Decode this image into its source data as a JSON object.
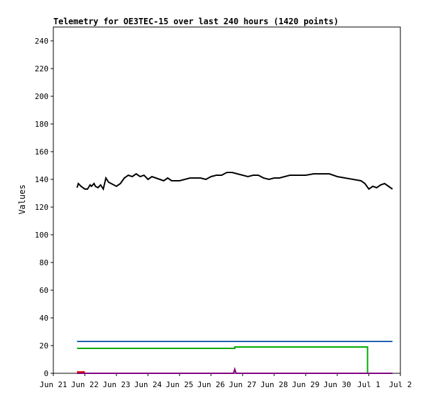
{
  "chart_data": {
    "type": "line",
    "title": "Telemetry for OE3TEC-15 over last 240 hours (1420 points)",
    "xlabel": "",
    "ylabel": "Values",
    "xlim": [
      "2021-06-21",
      "2021-07-02"
    ],
    "ylim": [
      0,
      250
    ],
    "x_ticks": [
      {
        "label": "Jun 21",
        "value": "2021-06-21"
      },
      {
        "label": "Jun 22",
        "value": "2021-06-22"
      },
      {
        "label": "Jun 23",
        "value": "2021-06-23"
      },
      {
        "label": "Jun 24",
        "value": "2021-06-24"
      },
      {
        "label": "Jun 25",
        "value": "2021-06-25"
      },
      {
        "label": "Jun 26",
        "value": "2021-06-26"
      },
      {
        "label": "Jun 27",
        "value": "2021-06-27"
      },
      {
        "label": "Jun 28",
        "value": "2021-06-28"
      },
      {
        "label": "Jun 29",
        "value": "2021-06-29"
      },
      {
        "label": "Jun 30",
        "value": "2021-06-30"
      },
      {
        "label": "Jul 1",
        "value": "2021-07-01"
      },
      {
        "label": "Jul 2",
        "value": "2021-07-02"
      }
    ],
    "y_ticks": [
      0,
      20,
      40,
      60,
      80,
      100,
      120,
      140,
      160,
      180,
      200,
      220,
      240
    ],
    "grid": false,
    "legend": "none",
    "series": [
      {
        "color": "#000000",
        "x": [
          "2021-06-21 18:00",
          "2021-06-21 19:00",
          "2021-06-21 21:00",
          "2021-06-22 00:00",
          "2021-06-22 02:00",
          "2021-06-22 04:00",
          "2021-06-22 05:00",
          "2021-06-22 07:00",
          "2021-06-22 08:00",
          "2021-06-22 10:00",
          "2021-06-22 12:00",
          "2021-06-22 14:00",
          "2021-06-22 16:00",
          "2021-06-22 18:00",
          "2021-06-22 20:00",
          "2021-06-23 00:00",
          "2021-06-23 03:00",
          "2021-06-23 06:00",
          "2021-06-23 09:00",
          "2021-06-23 12:00",
          "2021-06-23 15:00",
          "2021-06-23 18:00",
          "2021-06-23 21:00",
          "2021-06-24 00:00",
          "2021-06-24 03:00",
          "2021-06-24 06:00",
          "2021-06-24 09:00",
          "2021-06-24 12:00",
          "2021-06-24 15:00",
          "2021-06-24 18:00",
          "2021-06-24 21:00",
          "2021-06-25 00:00",
          "2021-06-25 04:00",
          "2021-06-25 08:00",
          "2021-06-25 12:00",
          "2021-06-25 16:00",
          "2021-06-25 20:00",
          "2021-06-26 00:00",
          "2021-06-26 04:00",
          "2021-06-26 08:00",
          "2021-06-26 12:00",
          "2021-06-26 16:00",
          "2021-06-26 20:00",
          "2021-06-27 00:00",
          "2021-06-27 04:00",
          "2021-06-27 08:00",
          "2021-06-27 12:00",
          "2021-06-27 16:00",
          "2021-06-27 20:00",
          "2021-06-28 00:00",
          "2021-06-28 04:00",
          "2021-06-28 08:00",
          "2021-06-28 12:00",
          "2021-06-28 16:00",
          "2021-06-28 20:00",
          "2021-06-29 00:00",
          "2021-06-29 06:00",
          "2021-06-29 12:00",
          "2021-06-29 18:00",
          "2021-06-30 00:00",
          "2021-06-30 06:00",
          "2021-06-30 12:00",
          "2021-06-30 18:00",
          "2021-06-30 21:00",
          "2021-07-01 00:00",
          "2021-07-01 03:00",
          "2021-07-01 06:00",
          "2021-07-01 09:00",
          "2021-07-01 12:00",
          "2021-07-01 15:00",
          "2021-07-01 18:00"
        ],
        "values": [
          134,
          137,
          135,
          133,
          133,
          136,
          135,
          137,
          135,
          134,
          136,
          133,
          141,
          138,
          137,
          135,
          137,
          141,
          143,
          142,
          144,
          142,
          143,
          140,
          142,
          141,
          140,
          139,
          141,
          139,
          139,
          139,
          140,
          141,
          141,
          141,
          140,
          142,
          143,
          143,
          145,
          145,
          144,
          143,
          142,
          143,
          143,
          141,
          140,
          141,
          141,
          142,
          143,
          143,
          143,
          143,
          144,
          144,
          144,
          142,
          141,
          140,
          139,
          137,
          133,
          135,
          134,
          136,
          137,
          135,
          133
        ]
      },
      {
        "color": "#1f63b3",
        "x": [
          "2021-06-21 18:00",
          "2021-07-01 18:00"
        ],
        "values": [
          23,
          23
        ]
      },
      {
        "color": "#00aa00",
        "x": [
          "2021-06-21 18:00",
          "2021-06-26 18:00",
          "2021-06-26 18:01",
          "2021-06-30 23:00",
          "2021-06-30 23:01",
          "2021-07-01 18:00"
        ],
        "values": [
          18,
          18,
          19,
          19,
          0,
          0
        ]
      },
      {
        "color": "#800080",
        "x": [
          "2021-06-21 18:00",
          "2021-06-26 17:00",
          "2021-06-26 18:00",
          "2021-06-26 19:00",
          "2021-07-01 18:00"
        ],
        "values": [
          0,
          0,
          3,
          0,
          0
        ]
      },
      {
        "color": "#dd0000",
        "x": [
          "2021-06-21 18:00",
          "2021-06-22 00:00"
        ],
        "values": [
          1,
          1
        ]
      }
    ]
  }
}
